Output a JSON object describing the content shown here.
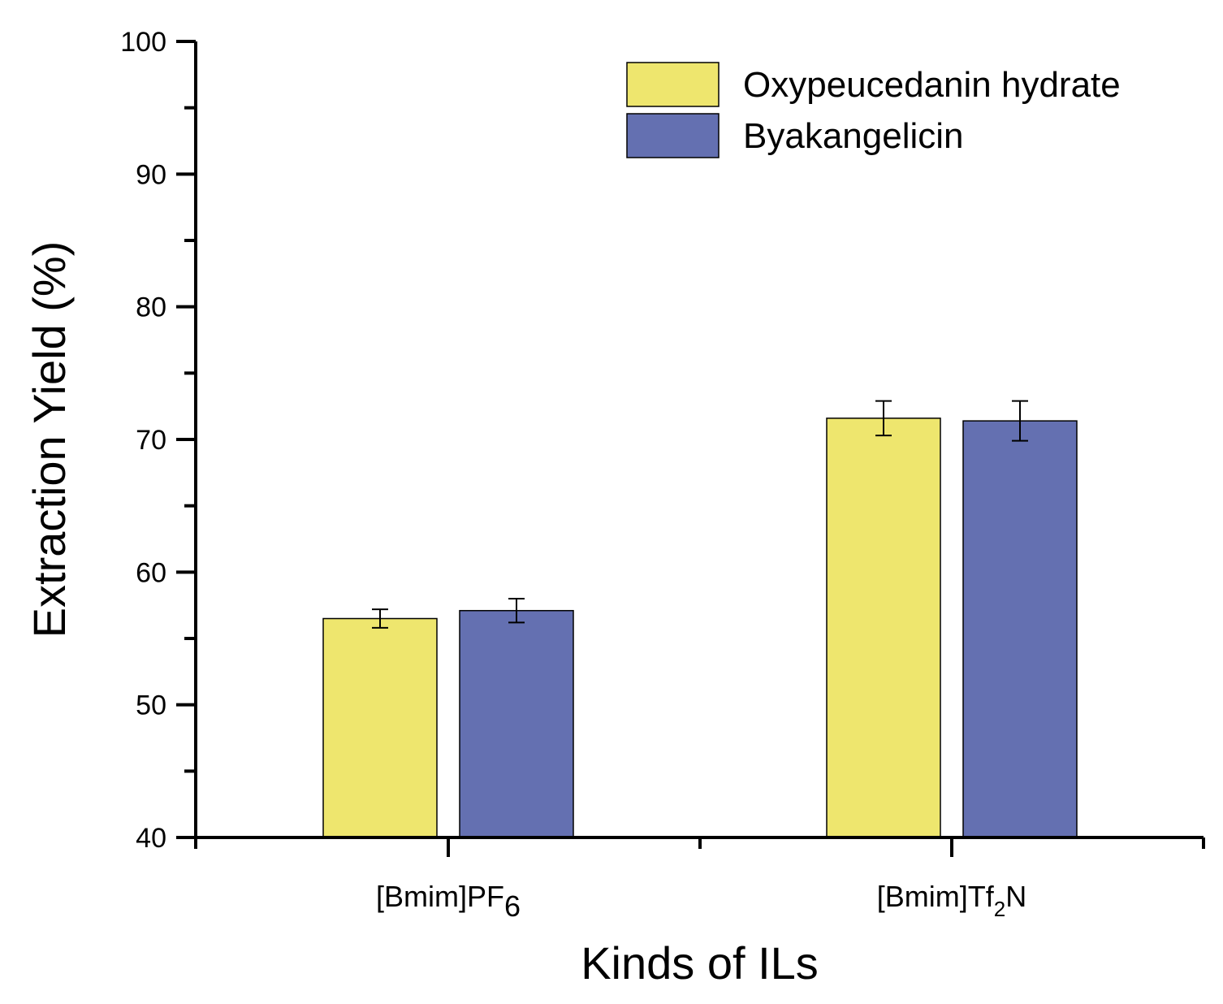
{
  "chart_data": {
    "type": "bar",
    "title": "",
    "xlabel": "Kinds of ILs",
    "ylabel": "Extraction Yield (%)",
    "ylim": [
      40,
      100
    ],
    "yticks": [
      40,
      50,
      60,
      70,
      80,
      90,
      100
    ],
    "grid": false,
    "legend_position": "top-right",
    "categories": [
      {
        "base": "[Bmim]PF",
        "sub": "6",
        "suffix": ""
      },
      {
        "base": "[Bmim]Tf",
        "sub": "2",
        "suffix": "N"
      }
    ],
    "series": [
      {
        "name": "Oxypeucedanin hydrate",
        "color": "#EEE66E",
        "values": [
          56.5,
          71.6
        ],
        "errors": [
          0.7,
          1.3
        ]
      },
      {
        "name": "Byakangelicin",
        "color": "#6470B1",
        "values": [
          57.1,
          71.4
        ],
        "errors": [
          0.9,
          1.5
        ]
      }
    ]
  }
}
